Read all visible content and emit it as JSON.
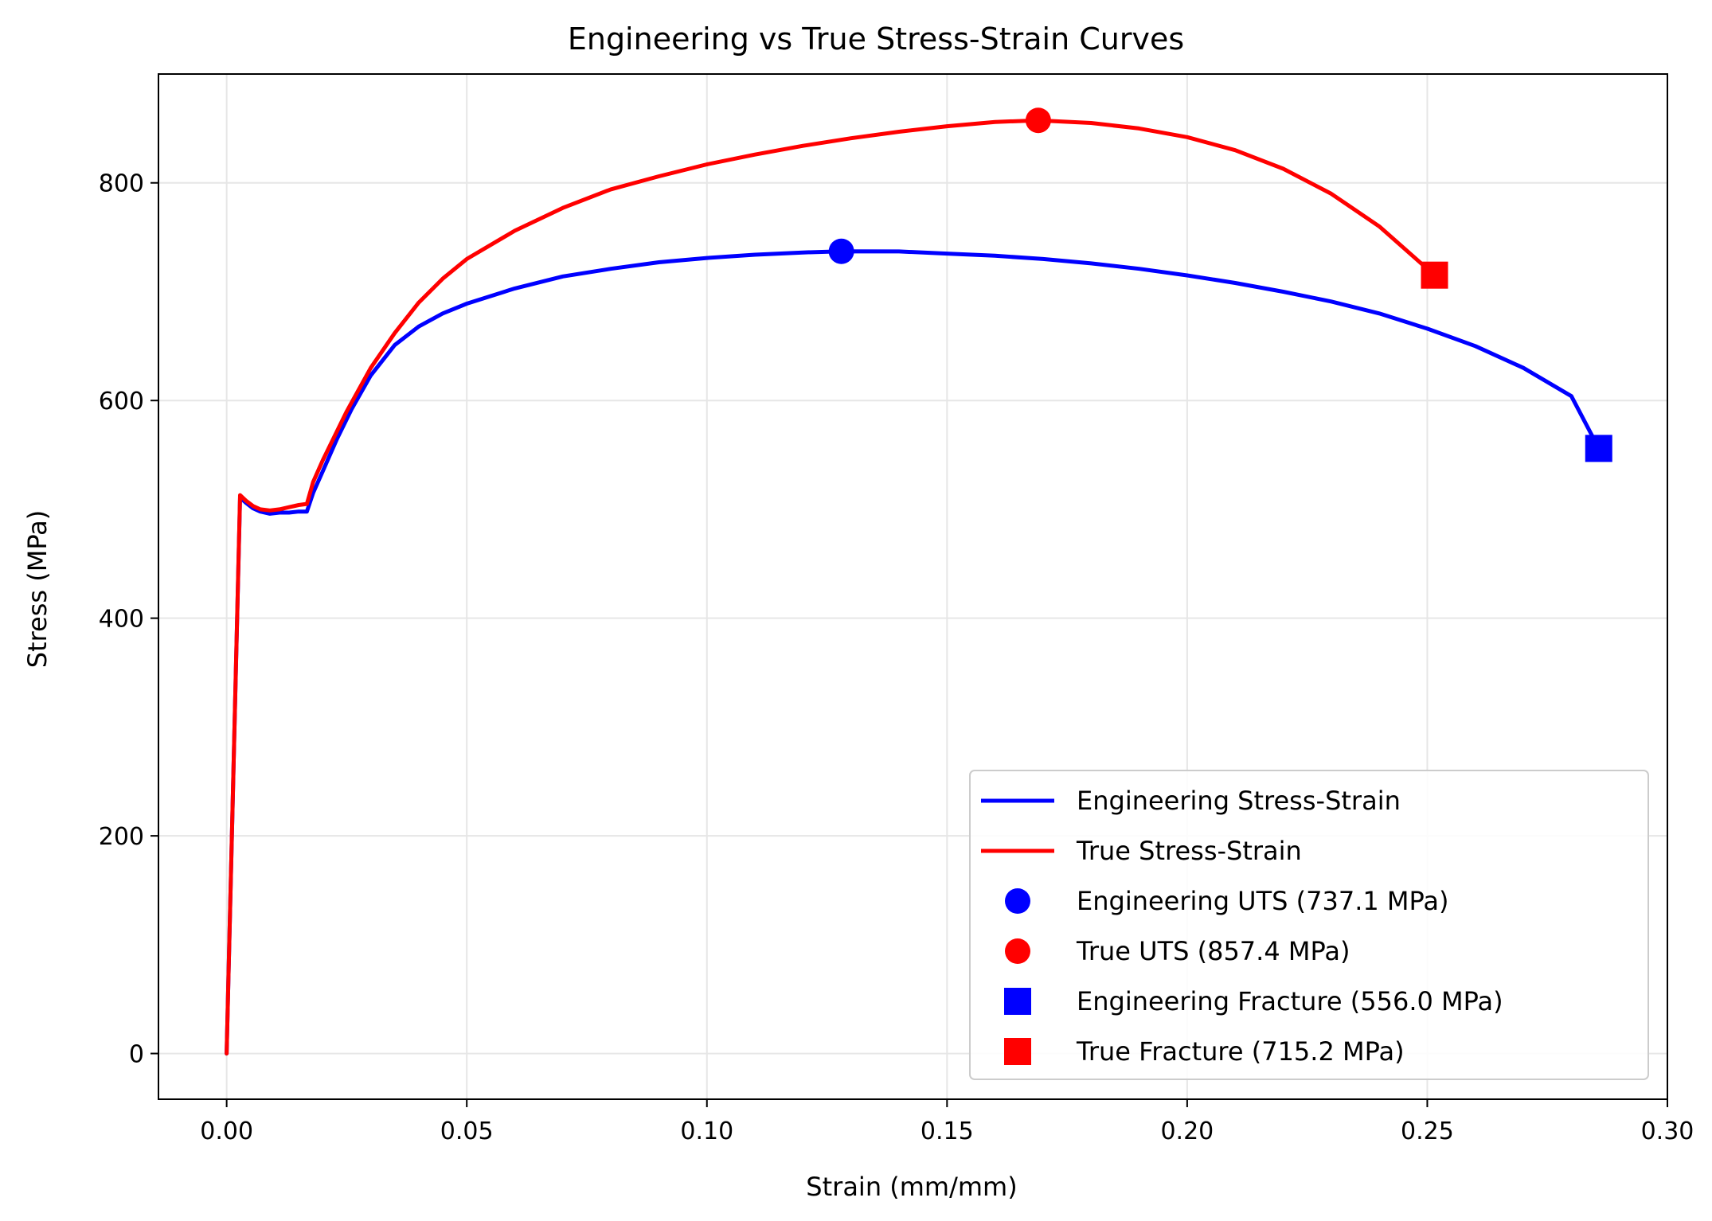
{
  "chart_data": {
    "type": "line",
    "title": "Engineering vs True Stress-Strain Curves",
    "xlabel": "Strain (mm/mm)",
    "ylabel": "Stress (MPa)",
    "xlim": [
      -0.0142,
      0.3
    ],
    "ylim": [
      -42,
      900
    ],
    "xticks": [
      0.0,
      0.05,
      0.1,
      0.15,
      0.2,
      0.25,
      0.3
    ],
    "xtick_labels": [
      "0.00",
      "0.05",
      "0.10",
      "0.15",
      "0.20",
      "0.25",
      "0.30"
    ],
    "yticks": [
      0,
      200,
      400,
      600,
      800
    ],
    "ytick_labels": [
      "0",
      "200",
      "400",
      "600",
      "800"
    ],
    "grid": true,
    "legend_position": "lower-right",
    "series": [
      {
        "name": "Engineering Stress-Strain",
        "kind": "line",
        "color": "#0000ff",
        "x": [
          0.0,
          0.0028,
          0.004,
          0.0055,
          0.007,
          0.009,
          0.011,
          0.013,
          0.015,
          0.0167,
          0.018,
          0.02,
          0.023,
          0.026,
          0.03,
          0.035,
          0.04,
          0.045,
          0.05,
          0.06,
          0.07,
          0.08,
          0.09,
          0.1,
          0.11,
          0.12,
          0.128,
          0.14,
          0.15,
          0.16,
          0.17,
          0.18,
          0.19,
          0.2,
          0.21,
          0.22,
          0.23,
          0.24,
          0.25,
          0.26,
          0.27,
          0.28,
          0.2857
        ],
        "y": [
          0,
          511,
          506,
          501,
          498,
          496,
          497,
          497,
          498,
          498,
          515,
          535,
          565,
          592,
          623,
          651,
          668,
          680,
          689,
          703,
          714,
          721,
          727,
          731,
          734,
          736,
          737.1,
          737,
          735,
          733,
          730,
          726,
          721,
          715,
          708,
          700,
          691,
          680,
          666,
          650,
          630,
          604,
          556
        ]
      },
      {
        "name": "True Stress-Strain",
        "kind": "line",
        "color": "#ff0000",
        "x": [
          0.0,
          0.0028,
          0.004,
          0.0055,
          0.007,
          0.009,
          0.011,
          0.013,
          0.015,
          0.0167,
          0.018,
          0.02,
          0.025,
          0.03,
          0.035,
          0.04,
          0.045,
          0.05,
          0.06,
          0.07,
          0.08,
          0.09,
          0.1,
          0.11,
          0.12,
          0.13,
          0.14,
          0.15,
          0.16,
          0.169,
          0.18,
          0.19,
          0.2,
          0.21,
          0.22,
          0.23,
          0.24,
          0.2515
        ],
        "y": [
          0,
          513,
          508,
          503,
          500,
          499,
          500,
          502,
          504,
          505,
          525,
          545,
          590,
          630,
          662,
          690,
          712,
          730,
          756,
          777,
          794,
          806,
          817,
          826,
          834,
          841,
          847,
          852,
          856,
          857.4,
          855,
          850,
          842,
          830,
          813,
          790,
          760,
          715.2
        ]
      },
      {
        "name": "Engineering UTS (737.1 MPa)",
        "kind": "marker",
        "marker": "circle",
        "color": "#0000ff",
        "x": [
          0.128
        ],
        "y": [
          737.1
        ]
      },
      {
        "name": "True UTS (857.4 MPa)",
        "kind": "marker",
        "marker": "circle",
        "color": "#ff0000",
        "x": [
          0.169
        ],
        "y": [
          857.4
        ]
      },
      {
        "name": "Engineering Fracture (556.0 MPa)",
        "kind": "marker",
        "marker": "square",
        "color": "#0000ff",
        "x": [
          0.2857
        ],
        "y": [
          556.0
        ]
      },
      {
        "name": "True Fracture (715.2 MPa)",
        "kind": "marker",
        "marker": "square",
        "color": "#ff0000",
        "x": [
          0.2515
        ],
        "y": [
          715.2
        ]
      }
    ]
  }
}
